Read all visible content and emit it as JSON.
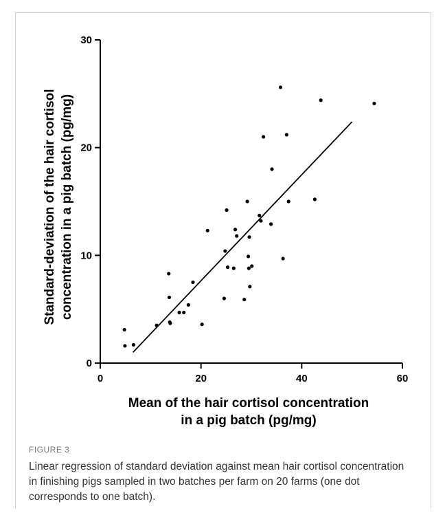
{
  "figure_label": "FIGURE 3",
  "caption": "Linear regression of standard deviation against mean hair cortisol concentration in finishing pigs sampled in two batches per farm on 20 farms (one dot corresponds to one batch).",
  "chart_data": {
    "type": "scatter",
    "title": "",
    "xlabel_lines": [
      "Mean of the hair cortisol concentration",
      "in a pig batch (pg/mg)"
    ],
    "ylabel_lines": [
      "Standard-deviation of the hair cortisol",
      "concentration in a pig batch (pg/mg)"
    ],
    "xlim": [
      0,
      60
    ],
    "ylim": [
      0,
      30
    ],
    "x_ticks": [
      0,
      20,
      40,
      60
    ],
    "y_ticks": [
      0,
      10,
      20,
      30
    ],
    "grid": false,
    "regression_line": {
      "x": [
        6.5,
        50
      ],
      "y": [
        1.0,
        22.4
      ]
    },
    "points": [
      {
        "x": 4.8,
        "y": 3.1
      },
      {
        "x": 4.9,
        "y": 1.6
      },
      {
        "x": 6.6,
        "y": 1.7
      },
      {
        "x": 11.2,
        "y": 3.5
      },
      {
        "x": 13.6,
        "y": 8.3
      },
      {
        "x": 13.7,
        "y": 6.1
      },
      {
        "x": 13.8,
        "y": 3.8
      },
      {
        "x": 13.9,
        "y": 3.7
      },
      {
        "x": 15.7,
        "y": 4.7
      },
      {
        "x": 16.6,
        "y": 4.7
      },
      {
        "x": 17.5,
        "y": 5.4
      },
      {
        "x": 18.4,
        "y": 7.5
      },
      {
        "x": 20.2,
        "y": 3.6
      },
      {
        "x": 21.3,
        "y": 12.3
      },
      {
        "x": 24.6,
        "y": 6.0
      },
      {
        "x": 24.8,
        "y": 10.4
      },
      {
        "x": 25.1,
        "y": 14.2
      },
      {
        "x": 25.3,
        "y": 8.9
      },
      {
        "x": 26.5,
        "y": 8.8
      },
      {
        "x": 26.8,
        "y": 12.4
      },
      {
        "x": 27.1,
        "y": 11.8
      },
      {
        "x": 28.6,
        "y": 5.9
      },
      {
        "x": 29.2,
        "y": 15.0
      },
      {
        "x": 29.4,
        "y": 9.9
      },
      {
        "x": 29.5,
        "y": 8.8
      },
      {
        "x": 29.6,
        "y": 11.7
      },
      {
        "x": 29.7,
        "y": 7.1
      },
      {
        "x": 30.1,
        "y": 9.0
      },
      {
        "x": 31.6,
        "y": 13.7
      },
      {
        "x": 31.9,
        "y": 13.2
      },
      {
        "x": 32.4,
        "y": 21.0
      },
      {
        "x": 33.9,
        "y": 12.9
      },
      {
        "x": 34.1,
        "y": 18.0
      },
      {
        "x": 35.8,
        "y": 25.6
      },
      {
        "x": 36.3,
        "y": 9.7
      },
      {
        "x": 37.0,
        "y": 21.2
      },
      {
        "x": 37.4,
        "y": 15.0
      },
      {
        "x": 42.6,
        "y": 15.2
      },
      {
        "x": 43.8,
        "y": 24.4
      },
      {
        "x": 54.4,
        "y": 24.1
      }
    ]
  }
}
